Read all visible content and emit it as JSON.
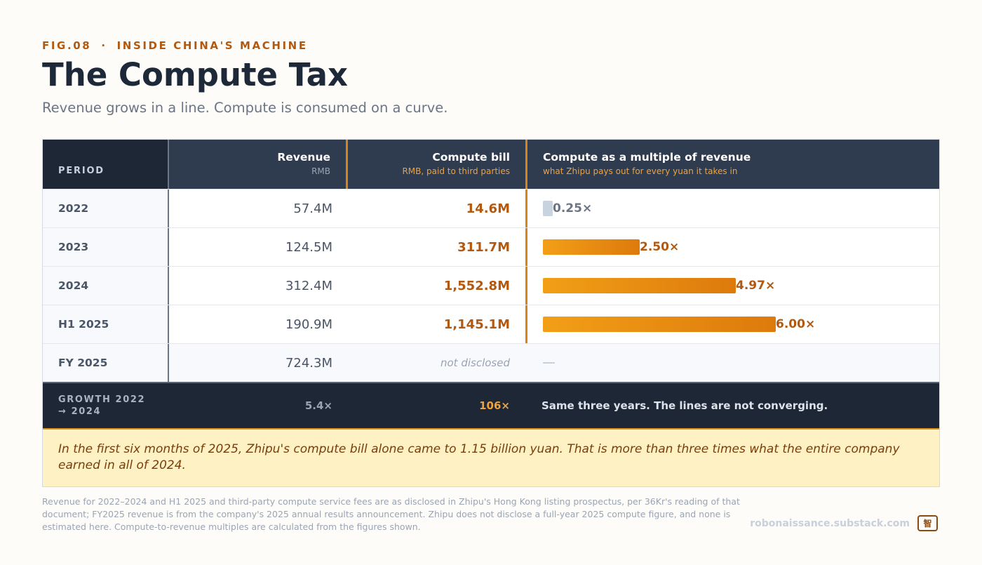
{
  "header": {
    "fig": "FIG.08",
    "separator": "·",
    "series": "INSIDE CHINA'S MACHINE",
    "title": "The Compute Tax",
    "subtitle": "Revenue grows in a line. Compute is consumed on a curve."
  },
  "table": {
    "columns": {
      "period": "PERIOD",
      "revenue": "Revenue",
      "revenue_sub": "RMB",
      "compute": "Compute bill",
      "compute_sub": "RMB, paid to third parties",
      "multiple": "Compute as a multiple of revenue",
      "multiple_sub": "what Zhipu pays out for every yuan it takes in"
    },
    "rows": [
      {
        "period": "2022",
        "revenue": "57.4M",
        "compute": "14.6M",
        "multiple": "0.25×"
      },
      {
        "period": "2023",
        "revenue": "124.5M",
        "compute": "311.7M",
        "multiple": "2.50×"
      },
      {
        "period": "2024",
        "revenue": "312.4M",
        "compute": "1,552.8M",
        "multiple": "4.97×"
      },
      {
        "period": "H1 2025",
        "revenue": "190.9M",
        "compute": "1,145.1M",
        "multiple": "6.00×"
      },
      {
        "period": "FY 2025",
        "revenue": "724.3M",
        "compute": "not disclosed",
        "multiple": ""
      }
    ],
    "growth": {
      "label_line1": "GROWTH 2022",
      "label_line2": "→ 2024",
      "revenue": "5.4×",
      "compute": "106×",
      "note": "Same three years. The lines are not converging."
    }
  },
  "chart_data": {
    "type": "bar",
    "categories": [
      "2022",
      "2023",
      "2024",
      "H1 2025"
    ],
    "values": [
      0.25,
      2.5,
      4.97,
      6.0
    ],
    "title": "Compute as a multiple of revenue",
    "ylabel": "",
    "xlabel": ""
  },
  "callout": "In the first six months of 2025, Zhipu's compute bill alone came to 1.15 billion yuan. That is more than three times what the entire company earned in all of 2024.",
  "footnote": "Revenue for 2022–2024 and H1 2025 and third-party compute service fees are as disclosed in Zhipu's Hong Kong listing prospectus, per 36Kr's reading of that document; FY2025 revenue is from the company's 2025 annual results announcement. Zhipu does not disclose a full-year 2025 compute figure, and none is estimated here. Compute-to-revenue multiples are calculated from the figures shown.",
  "site": "robonaissance.substack.com",
  "badge": "智",
  "colors": {
    "accent": "#b3590f",
    "bar": "#ef9a15",
    "header": "#2f3b4f",
    "dark": "#1d2735"
  }
}
